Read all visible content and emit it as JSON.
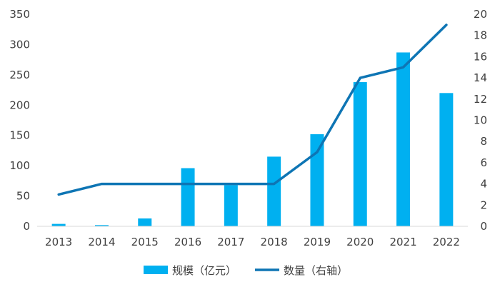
{
  "chart_data": {
    "type": "bar",
    "categories": [
      "2013",
      "2014",
      "2015",
      "2016",
      "2017",
      "2018",
      "2019",
      "2020",
      "2021",
      "2022"
    ],
    "series": [
      {
        "name": "规模（亿元）",
        "type": "bar",
        "axis": "left",
        "color": "#00b0f0",
        "values": [
          4,
          2,
          13,
          96,
          68,
          115,
          152,
          238,
          287,
          220
        ]
      },
      {
        "name": "数量（右轴）",
        "type": "line",
        "axis": "right",
        "color": "#0e75b4",
        "values": [
          3,
          4,
          4,
          4,
          4,
          4,
          7,
          14,
          15,
          19
        ]
      }
    ],
    "y_left": {
      "min": 0,
      "max": 350,
      "ticks": [
        0,
        50,
        100,
        150,
        200,
        250,
        300,
        350
      ]
    },
    "y_right": {
      "min": 0,
      "max": 20,
      "ticks": [
        0,
        2,
        4,
        6,
        8,
        10,
        12,
        14,
        16,
        18,
        20
      ]
    },
    "grid": false,
    "legend": "bottom"
  }
}
